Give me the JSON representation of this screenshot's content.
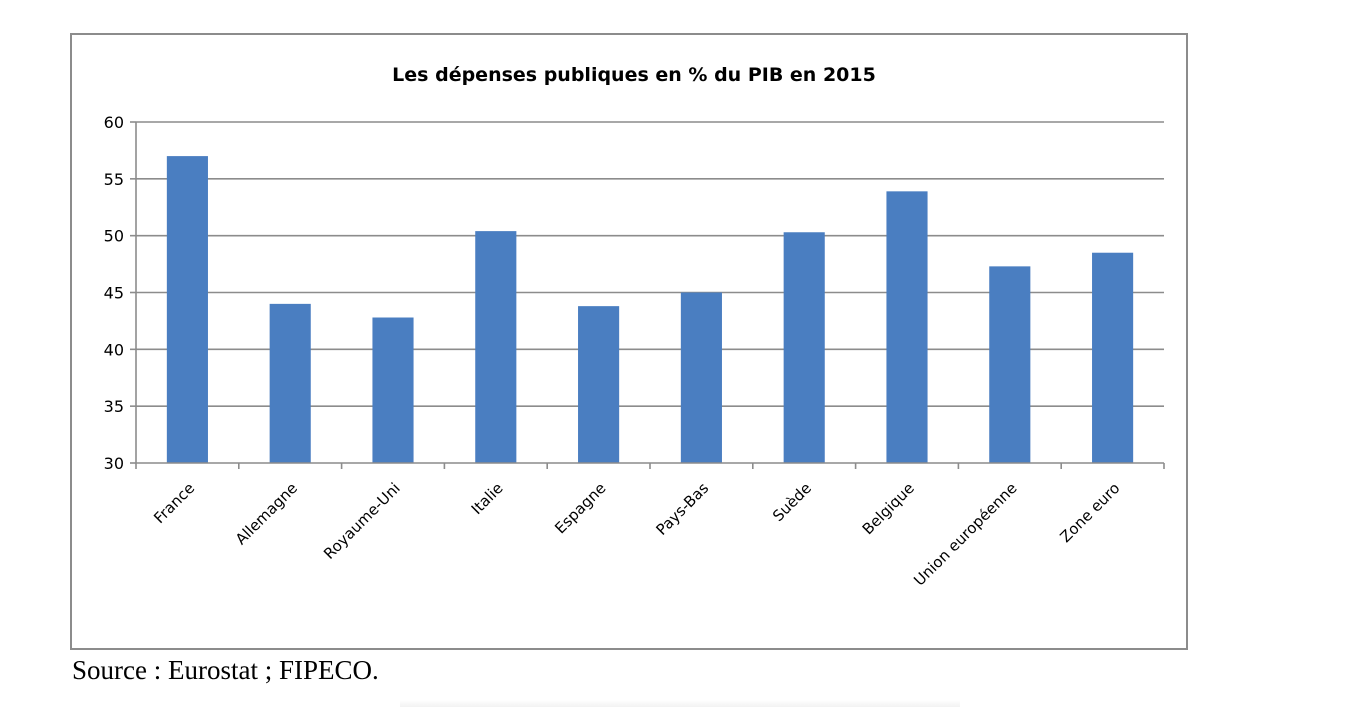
{
  "chart_data": {
    "type": "bar",
    "title": "Les dépenses publiques  en % du PIB en 2015",
    "xlabel": "",
    "ylabel": "",
    "ylim": [
      30,
      60
    ],
    "yticks": [
      30,
      35,
      40,
      45,
      50,
      55,
      60
    ],
    "grid": true,
    "legend": "none",
    "categories": [
      "France",
      "Allemagne",
      "Royaume-Uni",
      "Italie",
      "Espagne",
      "Pays-Bas",
      "Suède",
      "Belgique",
      "Union européenne",
      "Zone euro"
    ],
    "values": [
      57.0,
      44.0,
      42.8,
      50.4,
      43.8,
      45.0,
      50.3,
      53.9,
      47.3,
      48.5
    ],
    "colors": {
      "bar": "#4a7ec1",
      "grid": "#8c8c8c",
      "axis": "#8c8c8c"
    }
  },
  "source_note": "Source : Eurostat ; FIPECO."
}
